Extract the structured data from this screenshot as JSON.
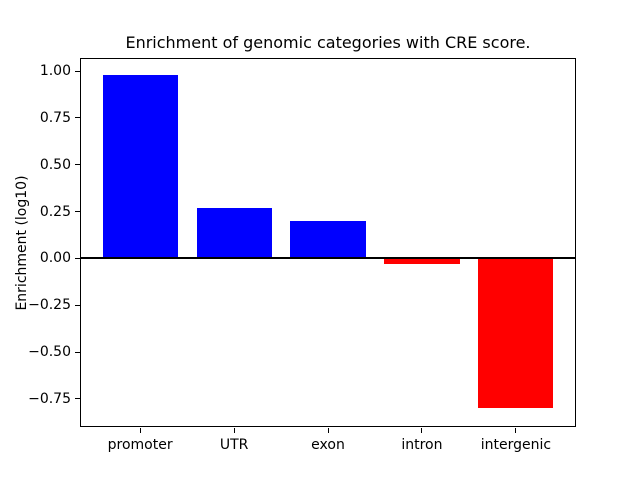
{
  "chart_data": {
    "type": "bar",
    "title": "Enrichment of genomic categories with CRE score.",
    "xlabel": "",
    "ylabel": "Enrichment (log10)",
    "categories": [
      "promoter",
      "UTR",
      "exon",
      "intron",
      "intergenic"
    ],
    "values": [
      0.98,
      0.27,
      0.2,
      -0.03,
      -0.8
    ],
    "bar_colors": [
      "#0000ff",
      "#0000ff",
      "#0000ff",
      "#ff0000",
      "#ff0000"
    ],
    "positive_color": "#0000ff",
    "negative_color": "#ff0000",
    "bar_width": 0.8,
    "xlim": [
      -0.64,
      4.64
    ],
    "ylim": [
      -0.9,
      1.07
    ],
    "ytick_values": [
      1.0,
      0.75,
      0.5,
      0.25,
      0.0,
      -0.25,
      -0.5,
      -0.75
    ],
    "ytick_labels": [
      "1.00",
      "0.75",
      "0.50",
      "0.25",
      "0.00",
      "−0.25",
      "−0.50",
      "−0.75"
    ],
    "zero_line": true,
    "grid": false,
    "legend": false,
    "spine_color": "#000000",
    "background_color": "#ffffff"
  }
}
